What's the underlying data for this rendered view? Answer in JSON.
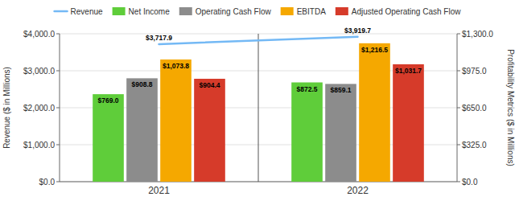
{
  "chart_data": {
    "type": "bar",
    "categories": [
      "2021",
      "2022"
    ],
    "series": [
      {
        "name": "Revenue",
        "type": "line",
        "color": "#74b9f5",
        "values": [
          3717.9,
          3919.7
        ],
        "value_labels": [
          "$3,717.9",
          "$3,919.7"
        ]
      },
      {
        "name": "Net Income",
        "type": "bar",
        "axis": "y2",
        "color": "#5fcd3a",
        "values": [
          769.0,
          872.5
        ],
        "value_labels": [
          "$769.0",
          "$872.5"
        ]
      },
      {
        "name": "Operating Cash Flow",
        "type": "bar",
        "axis": "y2",
        "color": "#8c8c8c",
        "values": [
          908.8,
          859.1
        ],
        "value_labels": [
          "$908.8",
          "$859.1"
        ]
      },
      {
        "name": "EBITDA",
        "type": "bar",
        "axis": "y2",
        "color": "#f5a800",
        "values": [
          1073.8,
          1216.5
        ],
        "value_labels": [
          "$1,073.8",
          "$1,216.5"
        ]
      },
      {
        "name": "Adjusted Operating Cash Flow",
        "type": "bar",
        "axis": "y2",
        "color": "#d63b2a",
        "values": [
          904.4,
          1031.7
        ],
        "value_labels": [
          "$904.4",
          "$1,031.7"
        ]
      }
    ],
    "ylabel": "Revenue ($ in Millions)",
    "y2label": "Profitability Metrics ($ in Millions)",
    "ylim": [
      0,
      4000
    ],
    "yticks": [
      {
        "value": 0,
        "label": "$0.0"
      },
      {
        "value": 1000,
        "label": "$1,000.0"
      },
      {
        "value": 2000,
        "label": "$2,000.0"
      },
      {
        "value": 3000,
        "label": "$3,000.0"
      },
      {
        "value": 4000,
        "label": "$4,000.0"
      }
    ],
    "y2lim": [
      0,
      1300
    ],
    "y2ticks": [
      {
        "value": 0,
        "label": "$0.0"
      },
      {
        "value": 325,
        "label": "$325.0"
      },
      {
        "value": 650,
        "label": "$650.0"
      },
      {
        "value": 975,
        "label": "$975.0"
      },
      {
        "value": 1300,
        "label": "$1,300.0"
      }
    ],
    "grid": true,
    "legend": "top",
    "data_labels": true
  }
}
